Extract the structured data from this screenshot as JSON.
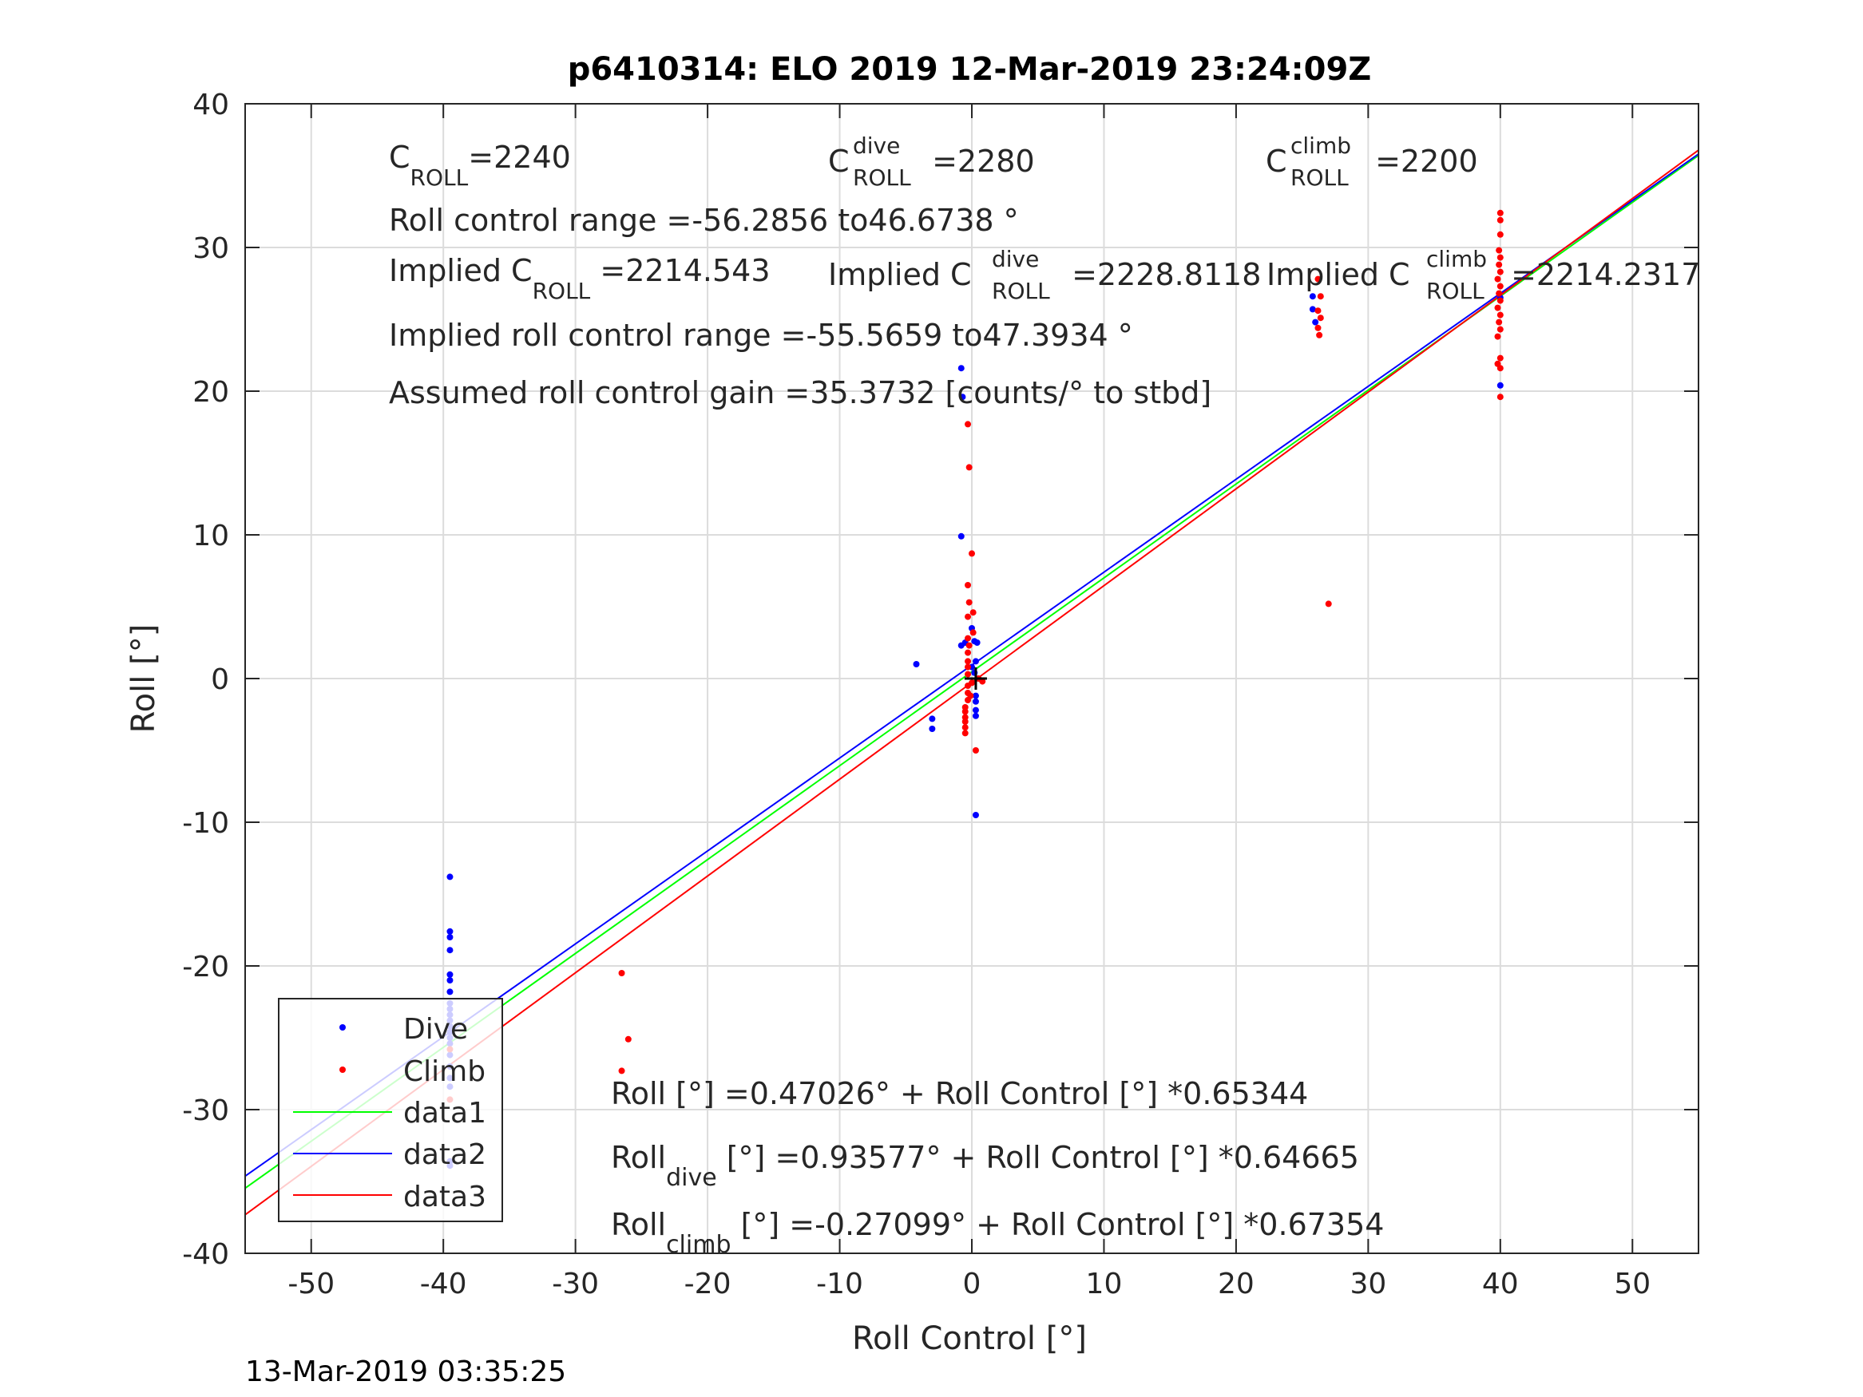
{
  "chart_data": {
    "type": "scatter",
    "title": "p6410314: ELO 2019 12-Mar-2019 23:24:09Z",
    "xlabel": "Roll Control [°]",
    "ylabel": "Roll [°]",
    "xlim": [
      -55,
      55
    ],
    "ylim": [
      -40,
      40
    ],
    "xticks": [
      "-50",
      "-40",
      "-30",
      "-20",
      "-10",
      "0",
      "10",
      "20",
      "30",
      "40",
      "50"
    ],
    "yticks": [
      "-40",
      "-30",
      "-20",
      "-10",
      "0",
      "10",
      "20",
      "30",
      "40"
    ],
    "grid": true,
    "legend_position": "bottom-left",
    "timestamp": "13-Mar-2019 03:35:25",
    "colors": {
      "dive": "#0000ff",
      "climb": "#ff0000",
      "data1": "#00ff00",
      "data2": "#0000ff",
      "data3": "#ff0000"
    },
    "series": [
      {
        "name": "Dive",
        "marker": "dot",
        "points": [
          [
            -39.5,
            -13.8
          ],
          [
            -39.5,
            -17.6
          ],
          [
            -39.5,
            -18.0
          ],
          [
            -39.5,
            -18.9
          ],
          [
            -39.5,
            -20.6
          ],
          [
            -39.5,
            -21.0
          ],
          [
            -39.5,
            -21.8
          ],
          [
            -39.5,
            -22.6
          ],
          [
            -39.5,
            -23.0
          ],
          [
            -39.5,
            -23.4
          ],
          [
            -39.5,
            -23.8
          ],
          [
            -39.5,
            -24.2
          ],
          [
            -39.5,
            -24.6
          ],
          [
            -39.5,
            -25.0
          ],
          [
            -39.5,
            -25.4
          ],
          [
            -39.5,
            -26.2
          ],
          [
            -39.5,
            -27.0
          ],
          [
            -39.5,
            -27.8
          ],
          [
            -39.5,
            -28.4
          ],
          [
            -39.5,
            -33.6
          ],
          [
            -39.5,
            -33.9
          ],
          [
            -4.2,
            1.0
          ],
          [
            -3.0,
            -2.8
          ],
          [
            -3.0,
            -3.5
          ],
          [
            -0.8,
            21.6
          ],
          [
            -0.7,
            19.6
          ],
          [
            -0.8,
            9.9
          ],
          [
            -0.8,
            2.3
          ],
          [
            -0.5,
            2.5
          ],
          [
            0.0,
            3.5
          ],
          [
            0.2,
            2.6
          ],
          [
            0.4,
            2.5
          ],
          [
            0.3,
            1.2
          ],
          [
            0.3,
            -1.2
          ],
          [
            0.3,
            -1.6
          ],
          [
            0.3,
            -2.2
          ],
          [
            0.3,
            -2.6
          ],
          [
            0.3,
            -9.5
          ],
          [
            0.0,
            0.8
          ],
          [
            0.2,
            0.4
          ],
          [
            25.8,
            26.6
          ],
          [
            25.8,
            25.7
          ],
          [
            26.0,
            24.8
          ],
          [
            40.0,
            20.4
          ],
          [
            40.0,
            26.5
          ]
        ]
      },
      {
        "name": "Climb",
        "marker": "dot",
        "points": [
          [
            -39.5,
            -25.8
          ],
          [
            -39.5,
            -29.3
          ],
          [
            -26.5,
            -20.5
          ],
          [
            -26.0,
            -25.1
          ],
          [
            -26.5,
            -27.3
          ],
          [
            -0.3,
            17.7
          ],
          [
            -0.2,
            14.7
          ],
          [
            0.0,
            8.7
          ],
          [
            -0.3,
            6.5
          ],
          [
            -0.2,
            5.3
          ],
          [
            -0.3,
            4.3
          ],
          [
            -0.3,
            2.8
          ],
          [
            -0.2,
            2.3
          ],
          [
            -0.3,
            1.8
          ],
          [
            -0.3,
            1.2
          ],
          [
            -0.3,
            0.8
          ],
          [
            -0.3,
            0.3
          ],
          [
            -0.3,
            -0.5
          ],
          [
            -0.3,
            -1.0
          ],
          [
            -0.3,
            -1.5
          ],
          [
            -0.5,
            -2.0
          ],
          [
            -0.5,
            -2.3
          ],
          [
            -0.5,
            -2.7
          ],
          [
            -0.5,
            -3.0
          ],
          [
            -0.5,
            -3.4
          ],
          [
            -0.5,
            -3.8
          ],
          [
            0.3,
            -5.0
          ],
          [
            0.0,
            -0.3
          ],
          [
            0.5,
            0.0
          ],
          [
            0.8,
            -0.2
          ],
          [
            -0.1,
            -1.2
          ],
          [
            0.1,
            3.2
          ],
          [
            0.1,
            4.6
          ],
          [
            26.2,
            27.8
          ],
          [
            26.4,
            26.6
          ],
          [
            26.2,
            25.6
          ],
          [
            26.4,
            25.1
          ],
          [
            26.2,
            24.4
          ],
          [
            26.3,
            23.9
          ],
          [
            27.0,
            5.2
          ],
          [
            40.0,
            32.4
          ],
          [
            40.0,
            31.9
          ],
          [
            40.0,
            30.9
          ],
          [
            39.9,
            29.8
          ],
          [
            40.0,
            29.3
          ],
          [
            39.9,
            28.8
          ],
          [
            40.0,
            28.3
          ],
          [
            39.8,
            27.8
          ],
          [
            40.0,
            27.3
          ],
          [
            39.9,
            26.8
          ],
          [
            40.0,
            26.3
          ],
          [
            39.8,
            25.8
          ],
          [
            40.0,
            25.3
          ],
          [
            39.9,
            24.8
          ],
          [
            40.0,
            24.3
          ],
          [
            39.8,
            23.8
          ],
          [
            40.0,
            22.3
          ],
          [
            39.8,
            21.9
          ],
          [
            40.0,
            21.6
          ],
          [
            40.0,
            19.6
          ]
        ]
      },
      {
        "name": "data1",
        "type": "line",
        "x": [
          -55,
          55
        ],
        "intercept": 0.47026,
        "slope": 0.65344
      },
      {
        "name": "data2",
        "type": "line",
        "x": [
          -55,
          55
        ],
        "intercept": 0.93577,
        "slope": 0.64665
      },
      {
        "name": "data3",
        "type": "line",
        "x": [
          -55,
          55
        ],
        "intercept": -0.27099,
        "slope": 0.67354
      }
    ],
    "annotations": {
      "c_roll": {
        "base": "C",
        "sub": "ROLL",
        "value": "=2240"
      },
      "c_roll_dive": {
        "base": "C",
        "sup": "dive",
        "sub": "ROLL",
        "value": " =2280"
      },
      "c_roll_climb": {
        "base": "C",
        "sup": "climb",
        "sub": "ROLL",
        "value": " =2200"
      },
      "roll_control_range": "Roll control range =-56.2856 to46.6738 °",
      "implied_c_roll": {
        "prefix": "Implied C",
        "sub": "ROLL",
        "value": " =2214.543"
      },
      "implied_c_roll_dive": {
        "prefix": "Implied C",
        "sup": "dive",
        "sub": "ROLL",
        "value": " =2228.8118"
      },
      "implied_c_roll_climb": {
        "prefix": "Implied C",
        "sup": "climb",
        "sub": "ROLL",
        "value": " =2214.2317"
      },
      "implied_range": "Implied roll control range =-55.5659 to47.3934 °",
      "gain": "Assumed roll control gain =35.3732 [counts/° to stbd]",
      "fit_all": {
        "base": "Roll",
        "rest": " [°] =0.47026° + Roll Control [°] *0.65344"
      },
      "fit_dive": {
        "base": "Roll",
        "sub": "dive",
        "rest": " [°] =0.93577° + Roll Control [°] *0.64665"
      },
      "fit_climb": {
        "base": "Roll",
        "sub": "climb",
        "rest": " [°] =-0.27099° + Roll Control [°] *0.67354"
      }
    }
  }
}
